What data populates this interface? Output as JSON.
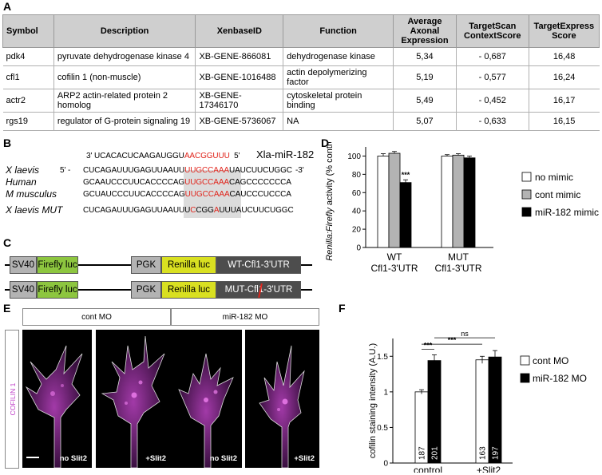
{
  "panels": {
    "a": "A",
    "b": "B",
    "c": "C",
    "d": "D",
    "e": "E",
    "f": "F"
  },
  "table": {
    "headers": [
      "Symbol",
      "Description",
      "XenbaseID",
      "Function",
      "Average Axonal Expression",
      "TargetScan ContextScore",
      "TargetExpress Score"
    ],
    "rows": [
      [
        "pdk4",
        "pyruvate dehydrogenase kinase 4",
        "XB-GENE-866081",
        "dehydrogenase kinase",
        "5,34",
        "- 0,687",
        "16,48"
      ],
      [
        "cfl1",
        "cofilin 1 (non-muscle)",
        "XB-GENE-1016488",
        "actin depolymerizing factor",
        "5,19",
        "- 0,577",
        "16,24"
      ],
      [
        "actr2",
        "ARP2 actin-related protein 2 homolog",
        "XB-GENE-17346170",
        "cytoskeletal protein binding",
        "5,49",
        "- 0,452",
        "16,17"
      ],
      [
        "rgs19",
        "regulator of G-protein signaling 19",
        "XB-GENE-5736067",
        "NA",
        "5,07",
        "- 0,633",
        "16,15"
      ]
    ]
  },
  "panel_b": {
    "mirna_prefix": "3'  UCACACUCAAGAUGGU",
    "mirna_red": "AACGGUUU",
    "mirna_suffix": "5'",
    "mirna_name": "Xla-miR-182",
    "rows": [
      {
        "species": "X laevis",
        "end5": "5' -",
        "pre": "CUCAGAUUUGAGUUAAUU",
        "site": "UUGCCAAA",
        "post": "UAUCUUCUGGC",
        "end3": "-3'"
      },
      {
        "species": "Human",
        "end5": "",
        "pre": "GCAAUCCCUUCACCCCAG",
        "site": "UUGCCAAA",
        "post": "CAGCCCCCCCA",
        "end3": ""
      },
      {
        "species": "M musculus",
        "end5": "",
        "pre": "GCUAUCCCUUCACCCCAG",
        "site": "UUGCCAAA",
        "post": "CAUCCCUCCCA",
        "end3": ""
      },
      {
        "species": "X laevis MUT",
        "end5": "",
        "pre": "CUCAGAUUUGAGUUAAUU",
        "site_parts": [
          "U",
          "C",
          "CGG",
          "A",
          "UU"
        ],
        "post": "UAUCUUCUGGC",
        "end3": ""
      }
    ]
  },
  "panel_c": {
    "constructs": [
      {
        "promoter1": "SV40",
        "reporter1": "Firefly luc",
        "promoter2": "PGK",
        "reporter2": "Renilla luc",
        "utr": "WT-Cfl1-3'UTR"
      },
      {
        "promoter1": "SV40",
        "reporter1": "Firefly luc",
        "promoter2": "PGK",
        "reporter2": "Renilla luc",
        "utr_pre": "MUT-Cfl",
        "utr_mid": "1",
        "utr_post": "-3'UTR"
      }
    ]
  },
  "panel_e": {
    "headers": [
      "cont MO",
      "miR-182 MO"
    ],
    "side_label": "COFILIN 1",
    "images": [
      "no Slit2",
      "+Slit2",
      "no Slit2",
      "+Slit2"
    ]
  },
  "colors": {
    "green": "#8dc63f",
    "yellow": "#d9e021",
    "gray": "#b3b3b3",
    "dark": "#4d4d4d",
    "magenta": "#c040c8",
    "red": "#e0241b"
  },
  "chart_data": [
    {
      "type": "bar",
      "ylabel": "Renilla:Firefly activity (% control)",
      "ylabel_italic": "Renilla:Firefly",
      "ylabel_rest": " activity (% control)",
      "ylim": [
        0,
        110
      ],
      "yticks": [
        "0",
        "20",
        "40",
        "60",
        "80",
        "100"
      ],
      "categories": [
        [
          "WT",
          "Cfl1-3'UTR"
        ],
        [
          "MUT",
          "Cfl1-3'UTR"
        ]
      ],
      "series": [
        {
          "name": "no mimic",
          "color": "#ffffff",
          "values": [
            100,
            100
          ],
          "errors": [
            2.5,
            1.5
          ]
        },
        {
          "name": "cont mimic",
          "color": "#b3b3b3",
          "values": [
            103,
            101
          ],
          "errors": [
            2,
            1.5
          ]
        },
        {
          "name": "miR-182 mimic",
          "color": "#000000",
          "values": [
            71,
            98
          ],
          "errors": [
            3,
            2
          ]
        }
      ],
      "annotations": [
        {
          "text": "***",
          "category": 0,
          "series": 2
        }
      ]
    },
    {
      "type": "bar",
      "ylabel": "cofilin staining intensity (A.U.)",
      "ylim": [
        0,
        1.75
      ],
      "yticks": [
        "0",
        "0.5",
        "1",
        "1.5"
      ],
      "categories": [
        "control",
        "+Slit2"
      ],
      "series": [
        {
          "name": "cont MO",
          "color": "#ffffff",
          "values": [
            1.0,
            1.45
          ],
          "errors": [
            0.03,
            0.05
          ],
          "n": [
            "187",
            "163"
          ]
        },
        {
          "name": "miR-182 MO",
          "color": "#000000",
          "values": [
            1.44,
            1.49
          ],
          "errors": [
            0.08,
            0.09
          ],
          "n": [
            "201",
            "197"
          ]
        }
      ],
      "significance": [
        {
          "text": "***",
          "from": "control/cont MO",
          "to": "control/miR-182 MO"
        },
        {
          "text": "***",
          "from": "control/cont MO",
          "to": "+Slit2/cont MO"
        },
        {
          "text": "ns",
          "from": "control/miR-182 MO",
          "to": "+Slit2/miR-182 MO"
        }
      ]
    }
  ]
}
